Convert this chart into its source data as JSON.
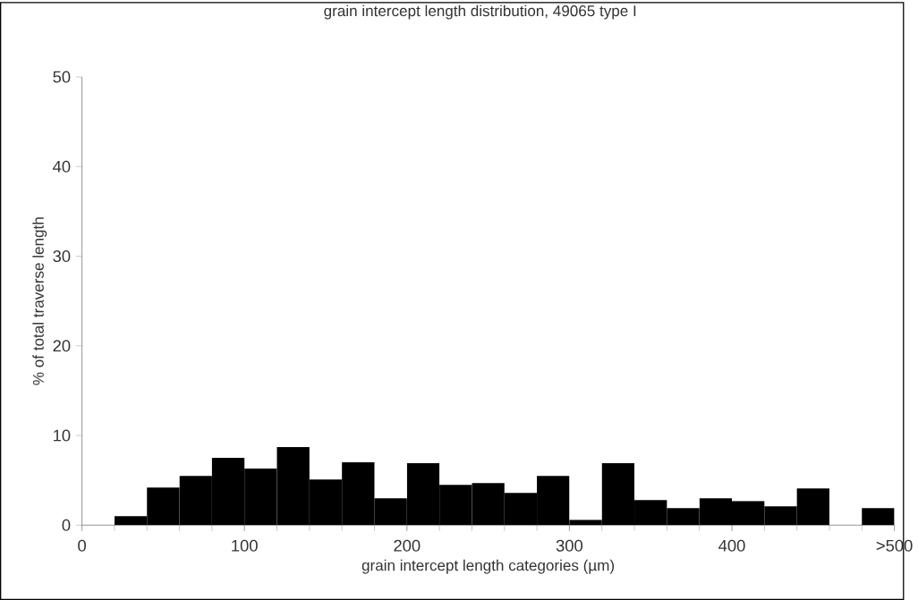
{
  "chart_data": {
    "type": "histogram",
    "title": "grain intercept length distribution, 49065 type I",
    "xlabel": "grain intercept length categories (µm)",
    "ylabel": "% of total traverse length",
    "bins": [
      0,
      20,
      40,
      60,
      80,
      100,
      120,
      140,
      160,
      180,
      200,
      220,
      240,
      260,
      280,
      300,
      320,
      340,
      360,
      380,
      400,
      420,
      440,
      460,
      480,
      500
    ],
    "values": [
      0,
      1.0,
      4.2,
      5.5,
      7.5,
      6.3,
      8.7,
      5.1,
      7.0,
      3.0,
      6.9,
      4.5,
      4.7,
      3.6,
      5.5,
      0.6,
      6.9,
      2.8,
      1.9,
      3.0,
      2.7,
      2.1,
      4.1,
      0,
      1.9
    ],
    "color": "#000000",
    "xlim": [
      0,
      500
    ],
    "xticks": [
      0,
      100,
      200,
      300,
      400,
      {
        "value": 500,
        "label": ">500"
      }
    ],
    "ylim": [
      0,
      50
    ],
    "yticks": [
      0,
      10,
      20,
      30,
      40,
      50
    ],
    "grid": false
  }
}
